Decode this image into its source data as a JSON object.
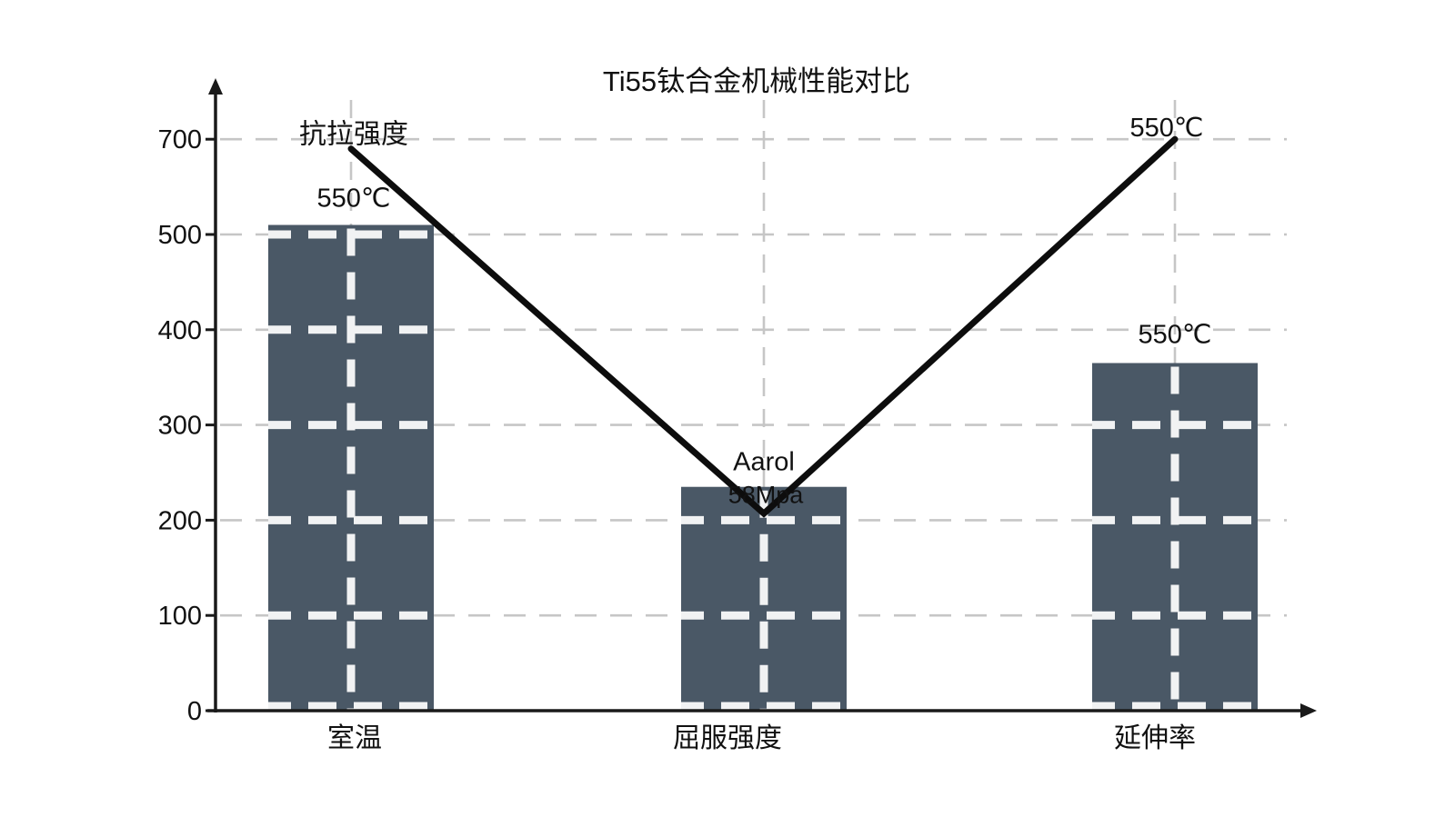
{
  "chart_data": {
    "type": "bar+line",
    "title": "Ti55钛合金机械性能对比",
    "categories": [
      "室温",
      "屈服强度",
      "延伸率"
    ],
    "y_axis": {
      "tick_labels": [
        "0",
        "100",
        "200",
        "300",
        "400",
        "500",
        "700"
      ],
      "units_per_step": 100,
      "range_shown": [
        0,
        700
      ]
    },
    "bars": [
      {
        "category": "室温",
        "value": 510,
        "label_above": "550℃"
      },
      {
        "category": "屈服强度",
        "value": 235,
        "label_above": "Aarol",
        "label_overlay": "58Mpa"
      },
      {
        "category": "延伸率",
        "value": 365,
        "label_above": "550℃"
      }
    ],
    "line": {
      "start_label": "抗拉强度",
      "end_label": "550℃",
      "values": [
        590,
        207,
        600
      ]
    },
    "grid": "dashed",
    "legend": "none",
    "colors": {
      "bar": "#4a5866",
      "line": "#0d0d0d",
      "grid_outside_bars": "#c6c6c6",
      "grid_inside_bars": "#f1f2f3",
      "axis": "#1a1a1a",
      "text": "#111111",
      "background": "#ffffff"
    }
  }
}
